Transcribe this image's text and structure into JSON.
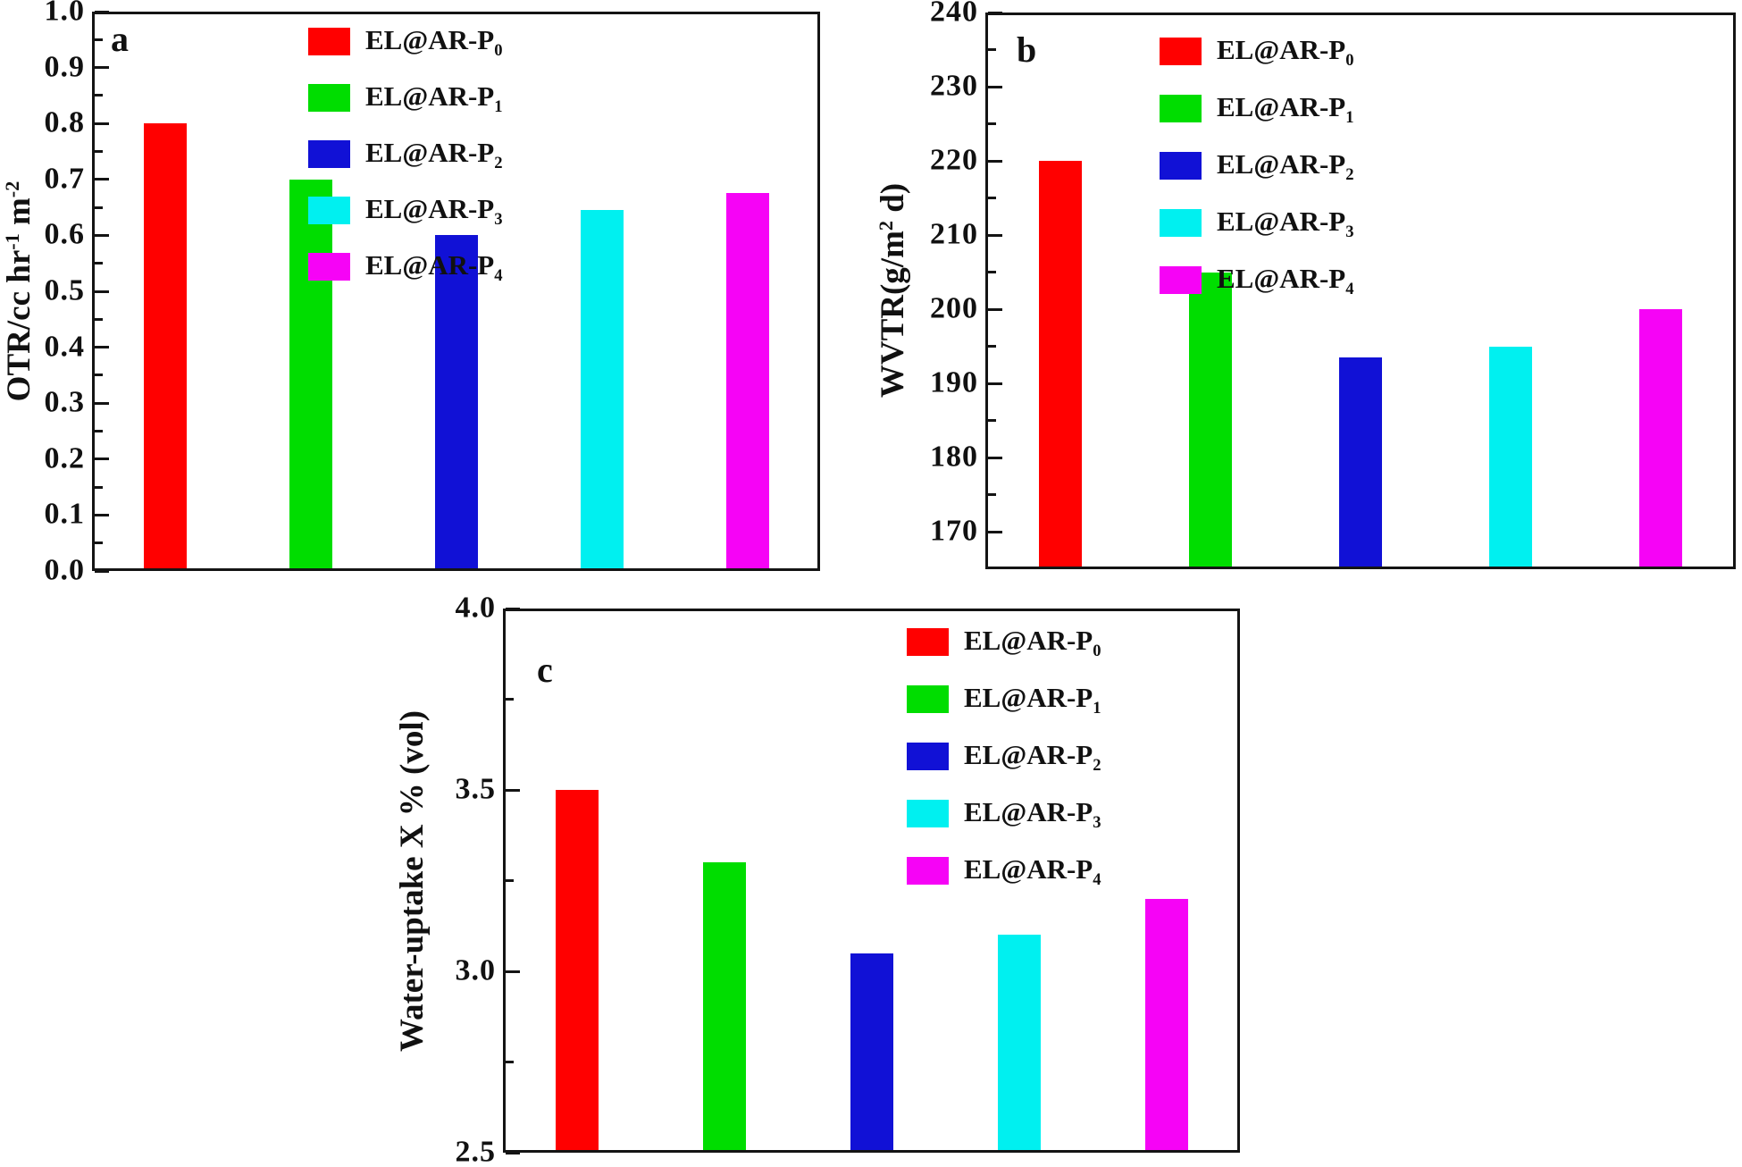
{
  "figure": {
    "background": "#ffffff",
    "text_color": "#111111",
    "frame_color": "#141414"
  },
  "legend": {
    "position": "top-right-inside",
    "entries": [
      {
        "label": "EL@AR-P",
        "sub": "0",
        "color": "#ff0000"
      },
      {
        "label": "EL@AR-P",
        "sub": "1",
        "color": "#00dd00"
      },
      {
        "label": "EL@AR-P",
        "sub": "2",
        "color": "#1111d6"
      },
      {
        "label": "EL@AR-P",
        "sub": "3",
        "color": "#00f0f0"
      },
      {
        "label": "EL@AR-P",
        "sub": "4",
        "color": "#f603f6"
      }
    ]
  },
  "chart_data": [
    {
      "type": "bar",
      "panel_label": "a",
      "title": "",
      "xlabel": "",
      "ylabel": "OTR/cc hr⁻¹ m⁻²",
      "ylabel_segments": [
        {
          "t": "OTR/cc hr"
        },
        {
          "t": "-1",
          "v": "sup"
        },
        {
          "t": " m"
        },
        {
          "t": "-2",
          "v": "sup"
        }
      ],
      "categories": [
        "EL@AR-P₀",
        "EL@AR-P₁",
        "EL@AR-P₂",
        "EL@AR-P₃",
        "EL@AR-P₄"
      ],
      "values": [
        0.8,
        0.7,
        0.6,
        0.645,
        0.675
      ],
      "ylim": [
        0.0,
        1.0
      ],
      "ytick_labels": [
        "0.0",
        "0.1",
        "0.2",
        "0.3",
        "0.4",
        "0.5",
        "0.6",
        "0.7",
        "0.8",
        "0.9",
        "1.0"
      ],
      "minor_ticks_at_half_step": true,
      "grid": false,
      "legend_position": "top-center-right-inside"
    },
    {
      "type": "bar",
      "panel_label": "b",
      "title": "",
      "xlabel": "",
      "ylabel": "WVTR(g/m² d)",
      "ylabel_segments": [
        {
          "t": "WVTR(g/m"
        },
        {
          "t": "2",
          "v": "sup"
        },
        {
          "t": " d)"
        }
      ],
      "categories": [
        "EL@AR-P₀",
        "EL@AR-P₁",
        "EL@AR-P₂",
        "EL@AR-P₃",
        "EL@AR-P₄"
      ],
      "values": [
        220,
        205,
        193.5,
        195,
        200
      ],
      "ylim": [
        165,
        240
      ],
      "ytick_labels": [
        "170",
        "180",
        "190",
        "200",
        "210",
        "220",
        "230",
        "240"
      ],
      "minor_ticks_at_half_step": true,
      "grid": false,
      "legend_position": "top-right-inside"
    },
    {
      "type": "bar",
      "panel_label": "c",
      "title": "",
      "xlabel": "",
      "ylabel": "Water-uptake X % (vol)",
      "ylabel_segments": [
        {
          "t": "Water-uptake X % (vol)"
        }
      ],
      "categories": [
        "EL@AR-P₀",
        "EL@AR-P₁",
        "EL@AR-P₂",
        "EL@AR-P₃",
        "EL@AR-P₄"
      ],
      "values": [
        3.5,
        3.3,
        3.05,
        3.1,
        3.2
      ],
      "ylim": [
        2.5,
        4.0
      ],
      "ytick_labels": [
        "2.5",
        "3.0",
        "3.5",
        "4.0"
      ],
      "minor_ticks_at_half_step": true,
      "grid": false,
      "legend_position": "top-right-inside"
    }
  ]
}
